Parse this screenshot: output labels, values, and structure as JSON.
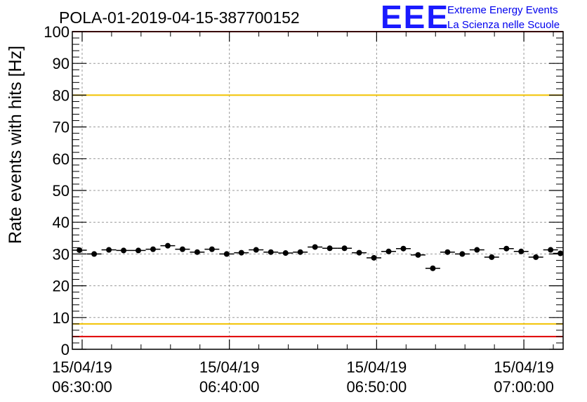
{
  "title": "POLA-01-2019-04-15-387700152",
  "logo": {
    "mark": "EEE",
    "line1": "Extreme Energy Events",
    "line2": "La Scienza nelle Scuole",
    "color": "#1a1aff"
  },
  "chart_data": {
    "type": "scatter",
    "title": "POLA-01-2019-04-15-387700152",
    "xlabel": "",
    "ylabel": "Rate events with hits [Hz]",
    "ylim": [
      0,
      100
    ],
    "yticks": [
      0,
      10,
      20,
      30,
      40,
      50,
      60,
      70,
      80,
      90,
      100
    ],
    "xlim": [
      "2019-04-15 06:29:20",
      "2019-04-15 07:02:40"
    ],
    "xticks": [
      {
        "date": "15/04/19",
        "time": "06:30:00"
      },
      {
        "date": "15/04/19",
        "time": "06:40:00"
      },
      {
        "date": "15/04/19",
        "time": "06:50:00"
      },
      {
        "date": "15/04/19",
        "time": "07:00:00"
      }
    ],
    "grid": true,
    "marker_color": "#000000",
    "thresholds": [
      {
        "value": 80,
        "color": "#f2c200"
      },
      {
        "value": 8,
        "color": "#f2c200"
      },
      {
        "value": 4,
        "color": "#e00000"
      },
      {
        "value": 100,
        "color": "#e00000"
      }
    ],
    "series": [
      {
        "x": [
          "06:29:49",
          "06:30:49",
          "06:31:49",
          "06:32:49",
          "06:33:49",
          "06:34:49",
          "06:35:49",
          "06:36:49",
          "06:37:49",
          "06:38:49",
          "06:39:49",
          "06:40:49",
          "06:41:49",
          "06:42:49",
          "06:43:49",
          "06:44:49",
          "06:45:49",
          "06:46:49",
          "06:47:49",
          "06:48:49",
          "06:49:49",
          "06:50:49",
          "06:51:49",
          "06:52:49",
          "06:53:49",
          "06:54:49",
          "06:55:49",
          "06:56:49",
          "06:57:49",
          "06:58:49",
          "06:59:49",
          "07:00:49",
          "07:01:49",
          "07:02:29"
        ],
        "values": [
          31.2,
          30.0,
          31.3,
          31.1,
          31.1,
          31.5,
          32.6,
          31.5,
          30.6,
          31.5,
          30.0,
          30.4,
          31.3,
          30.6,
          30.3,
          30.6,
          32.2,
          31.8,
          31.8,
          30.4,
          28.8,
          30.8,
          31.7,
          29.7,
          25.5,
          30.6,
          30.0,
          31.3,
          29.0,
          31.7,
          30.8,
          29.0,
          31.3,
          30.2
        ],
        "x_error_s": 30
      }
    ]
  }
}
